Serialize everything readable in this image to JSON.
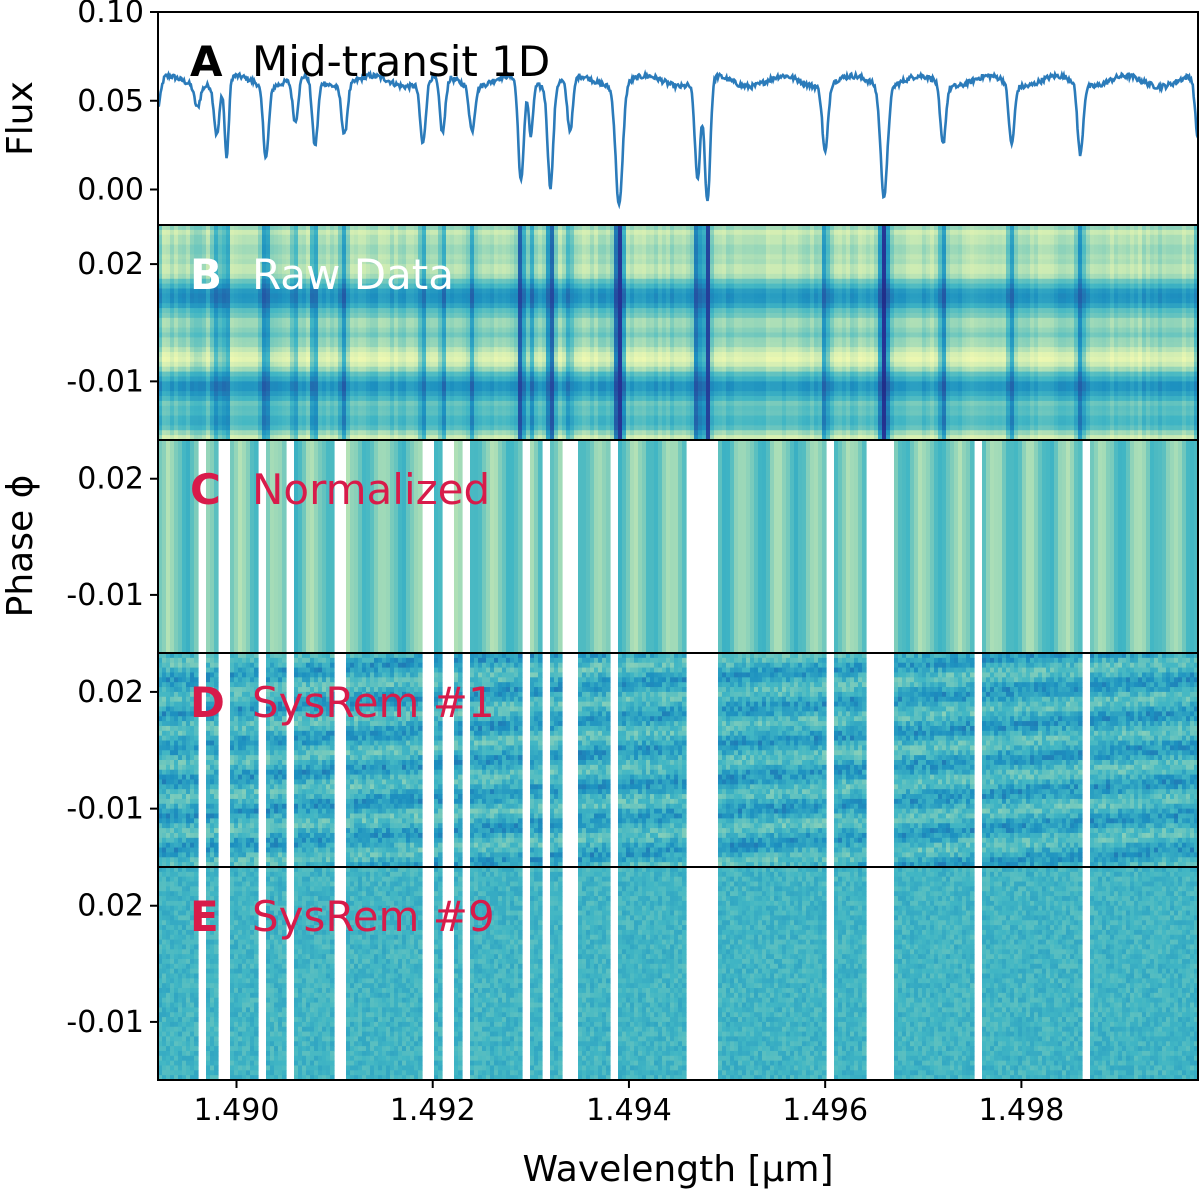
{
  "chart_data": {
    "type": "line+heatmap",
    "xlabel": "Wavelength [µm]",
    "xlim": [
      1.4892,
      1.4998
    ],
    "x_ticks": [
      "1.490",
      "1.492",
      "1.494",
      "1.496",
      "1.498"
    ],
    "x_tick_values": [
      1.49,
      1.492,
      1.494,
      1.496,
      1.498
    ],
    "shared_ylabel": "Phase ϕ",
    "colors": {
      "line": "#2b7bba",
      "letter_dark": "#000000",
      "letter_light": "#ffffff",
      "letter_red": "#d81b4a",
      "cmap": [
        "#081d58",
        "#253494",
        "#225ea8",
        "#1d91c0",
        "#41b6c4",
        "#7fcdbb",
        "#c7e9b4",
        "#edf8b1",
        "#ffffd9"
      ]
    },
    "masked_ranges": [
      [
        1.4896,
        1.4897
      ],
      [
        1.4898,
        1.48995
      ],
      [
        1.4902,
        1.4903
      ],
      [
        1.4905,
        1.4906
      ],
      [
        1.491,
        1.4911
      ],
      [
        1.4919,
        1.492
      ],
      [
        1.4921,
        1.4922
      ],
      [
        1.4923,
        1.4924
      ],
      [
        1.4929,
        1.493
      ],
      [
        1.4931,
        1.4932
      ],
      [
        1.4933,
        1.4935
      ],
      [
        1.4938,
        1.4939
      ],
      [
        1.4946,
        1.4949
      ],
      [
        1.496,
        1.4961
      ],
      [
        1.4964,
        1.4967
      ],
      [
        1.4975,
        1.4976
      ],
      [
        1.4986,
        1.4987
      ]
    ],
    "spectrum": {
      "continuum": 0.061,
      "absorption_lines": [
        {
          "center": 1.4892,
          "depth": 0.016,
          "width": 4e-05
        },
        {
          "center": 1.4896,
          "depth": 0.012,
          "width": 4e-05
        },
        {
          "center": 1.4898,
          "depth": 0.03,
          "width": 4e-05
        },
        {
          "center": 1.4899,
          "depth": 0.045,
          "width": 3e-05
        },
        {
          "center": 1.4903,
          "depth": 0.04,
          "width": 4e-05
        },
        {
          "center": 1.4906,
          "depth": 0.025,
          "width": 4e-05
        },
        {
          "center": 1.4908,
          "depth": 0.038,
          "width": 4e-05
        },
        {
          "center": 1.4911,
          "depth": 0.028,
          "width": 4e-05
        },
        {
          "center": 1.4919,
          "depth": 0.035,
          "width": 4e-05
        },
        {
          "center": 1.4921,
          "depth": 0.032,
          "width": 4e-05
        },
        {
          "center": 1.4924,
          "depth": 0.025,
          "width": 4e-05
        },
        {
          "center": 1.4929,
          "depth": 0.058,
          "width": 4e-05
        },
        {
          "center": 1.493,
          "depth": 0.03,
          "width": 3e-05
        },
        {
          "center": 1.4932,
          "depth": 0.057,
          "width": 4e-05
        },
        {
          "center": 1.4934,
          "depth": 0.03,
          "width": 4e-05
        },
        {
          "center": 1.4939,
          "depth": 0.068,
          "width": 5e-05
        },
        {
          "center": 1.4947,
          "depth": 0.055,
          "width": 4e-05
        },
        {
          "center": 1.4948,
          "depth": 0.07,
          "width": 4e-05
        },
        {
          "center": 1.496,
          "depth": 0.038,
          "width": 4e-05
        },
        {
          "center": 1.4966,
          "depth": 0.062,
          "width": 5e-05
        },
        {
          "center": 1.4972,
          "depth": 0.034,
          "width": 4e-05
        },
        {
          "center": 1.4979,
          "depth": 0.034,
          "width": 4e-05
        },
        {
          "center": 1.4986,
          "depth": 0.04,
          "width": 4e-05
        },
        {
          "center": 1.4998,
          "depth": 0.035,
          "width": 4e-05
        }
      ]
    },
    "panels": [
      {
        "letter": "A",
        "title": "Mid-transit 1D",
        "kind": "line",
        "ylabel": "Flux",
        "ylim": [
          -0.02,
          0.1
        ],
        "y_ticks": [
          "0.10",
          "0.05",
          "0.00"
        ],
        "y_tick_values": [
          0.1,
          0.05,
          0.0
        ],
        "letter_color": "dark",
        "title_color": "dark"
      },
      {
        "letter": "B",
        "title": "Raw Data",
        "kind": "heatmap",
        "mode": "raw",
        "ylim": [
          -0.025,
          0.03
        ],
        "y_ticks": [
          "0.02",
          "-0.01"
        ],
        "y_tick_values": [
          0.02,
          -0.01
        ],
        "letter_color": "light",
        "title_color": "light"
      },
      {
        "letter": "C",
        "title": "Normalized",
        "kind": "heatmap",
        "mode": "normalized",
        "ylim": [
          -0.025,
          0.03
        ],
        "y_ticks": [
          "0.02",
          "-0.01"
        ],
        "y_tick_values": [
          0.02,
          -0.01
        ],
        "letter_color": "red",
        "title_color": "red"
      },
      {
        "letter": "D",
        "title": "SysRem #1",
        "kind": "heatmap",
        "mode": "sysrem1",
        "ylim": [
          -0.025,
          0.03
        ],
        "y_ticks": [
          "0.02",
          "-0.01"
        ],
        "y_tick_values": [
          0.02,
          -0.01
        ],
        "letter_color": "red",
        "title_color": "red"
      },
      {
        "letter": "E",
        "title": "SysRem #9",
        "kind": "heatmap",
        "mode": "sysrem9",
        "ylim": [
          -0.025,
          0.03
        ],
        "y_ticks": [
          "0.02",
          "-0.01"
        ],
        "y_tick_values": [
          0.02,
          -0.01
        ],
        "letter_color": "red",
        "title_color": "red"
      }
    ]
  }
}
